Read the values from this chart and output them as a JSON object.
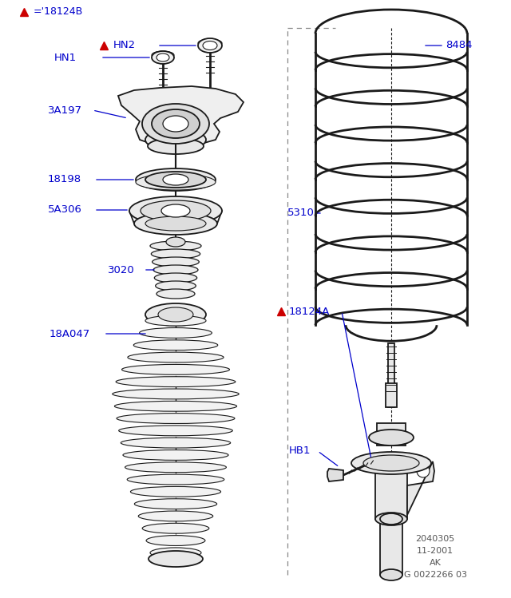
{
  "bg_color": "#ffffff",
  "label_color": "#0000cc",
  "red_color": "#cc0000",
  "line_color": "#1a1a1a",
  "lw": 1.3,
  "footer_lines": [
    "2040305",
    "11-2001",
    "AK",
    "G 0022266 03"
  ],
  "fig_w": 6.4,
  "fig_h": 7.49,
  "dpi": 100
}
